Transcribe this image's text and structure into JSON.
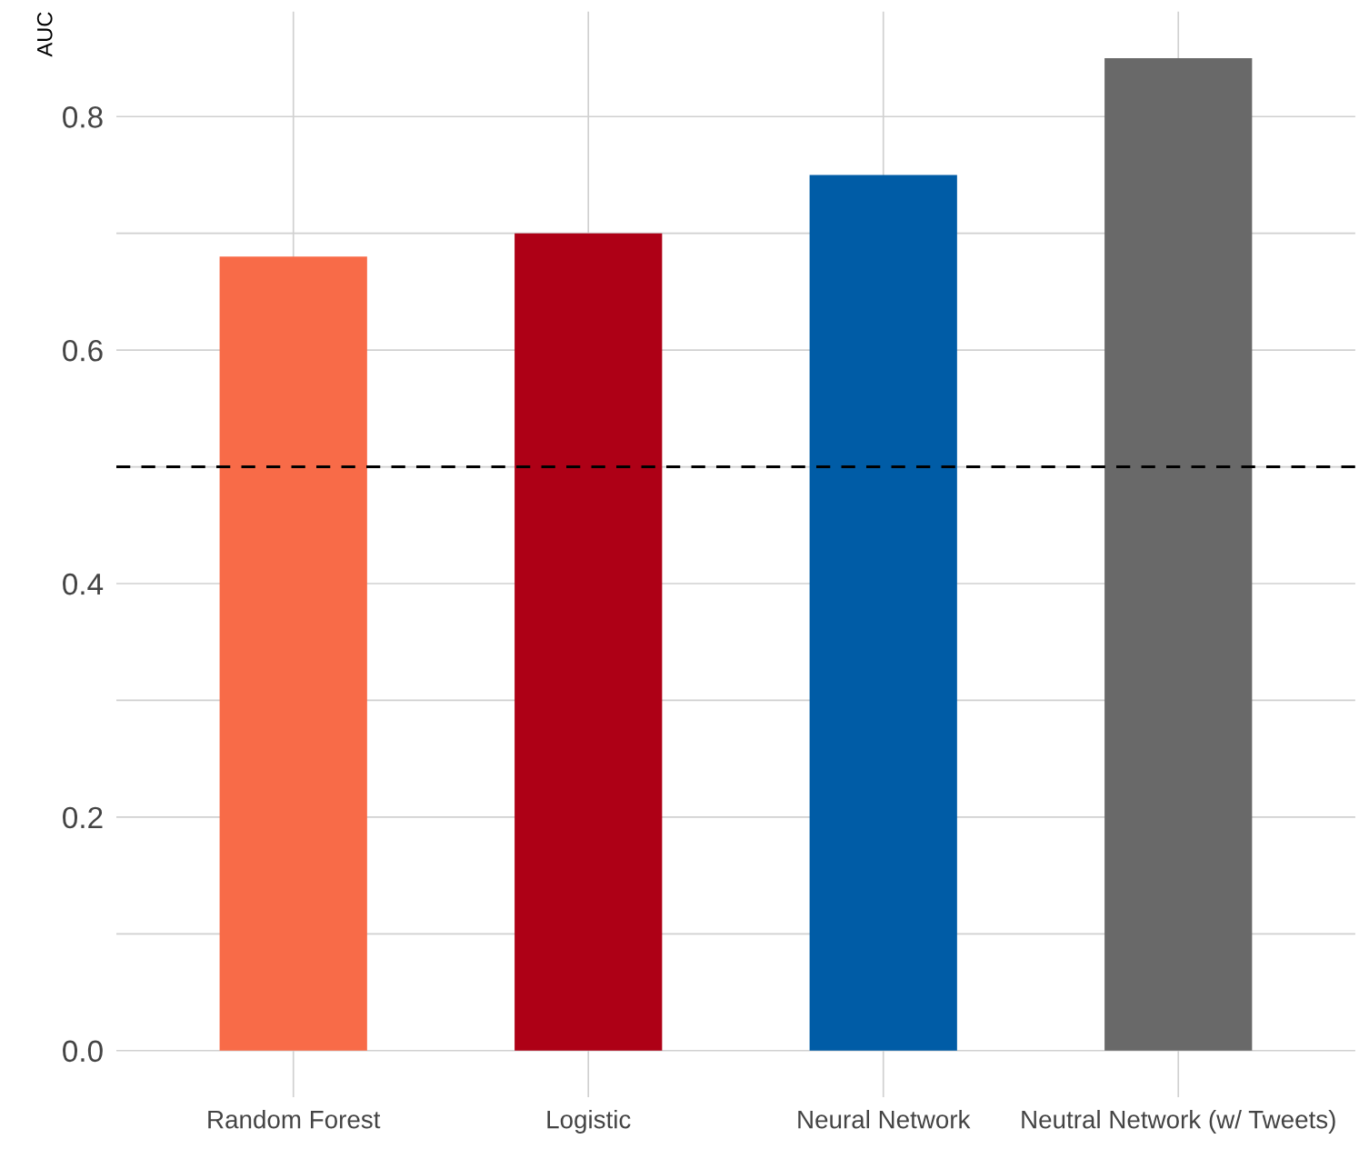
{
  "chart_data": {
    "type": "bar",
    "ylabel": "AUC",
    "categories": [
      "Random Forest",
      "Logistic",
      "Neural Network",
      "Neutral Network (w/ Tweets)"
    ],
    "values": [
      0.68,
      0.7,
      0.75,
      0.85
    ],
    "colors": [
      "#f86b48",
      "#ae0016",
      "#005ca6",
      "#696969"
    ],
    "ylim": [
      -0.04,
      0.89
    ],
    "yticks": [
      {
        "value": 0,
        "label": "0.0"
      },
      {
        "value": 0.1,
        "label": null
      },
      0.2,
      {
        "value": 0.3,
        "label": null
      },
      0.4,
      {
        "value": 0.5,
        "label": null
      },
      0.6,
      {
        "value": 0.7,
        "label": null
      },
      0.8
    ],
    "ref_lines": [
      {
        "axis": "y",
        "value": 0.5,
        "label": null,
        "color": "#000000",
        "line_style": "dashed"
      }
    ],
    "grid": true,
    "legend": false
  }
}
